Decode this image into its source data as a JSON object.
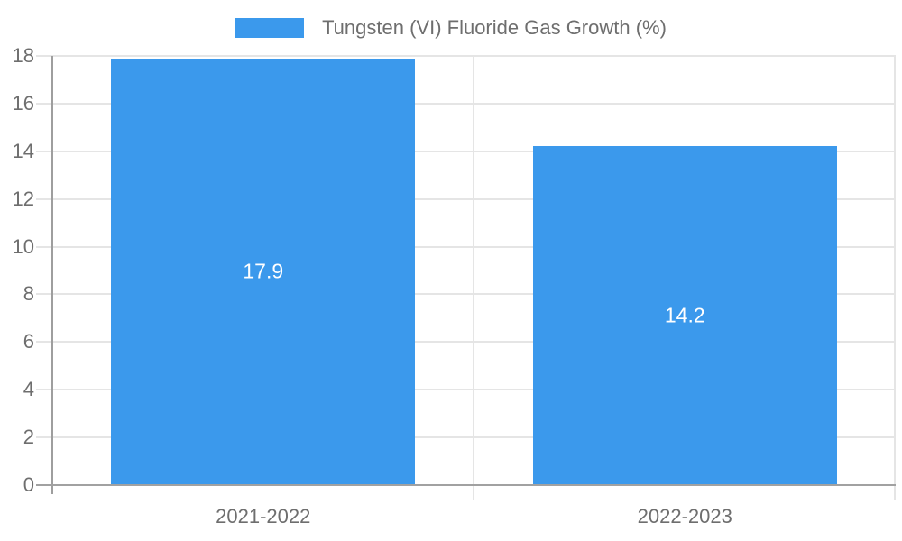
{
  "chart_data": {
    "type": "bar",
    "title": "",
    "legend": {
      "label": "Tungsten (VI) Fluoride Gas Growth (%)",
      "position": "top"
    },
    "categories": [
      "2021-2022",
      "2022-2023"
    ],
    "values": [
      17.9,
      14.2
    ],
    "value_labels": [
      "17.9",
      "14.2"
    ],
    "ylabel": "",
    "xlabel": "",
    "ylim": [
      0,
      18
    ],
    "ytick_step": 2,
    "ytick_labels": [
      "0",
      "2",
      "4",
      "6",
      "8",
      "10",
      "12",
      "14",
      "16",
      "18"
    ],
    "grid": true,
    "legend_position": "top-center"
  },
  "colors": {
    "bar": "#3b99ec",
    "grid": "#e5e5e5",
    "axis": "#9e9e9e",
    "bottom_axis": "#a1a1a1",
    "text": "#6e6e6e",
    "value_label_text": "#ffffff",
    "background": "#ffffff"
  }
}
